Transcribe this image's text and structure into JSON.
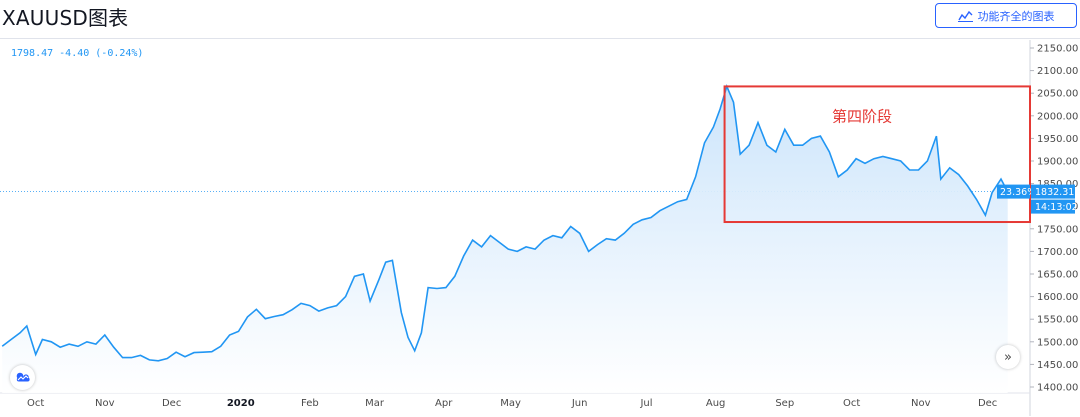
{
  "page": {
    "title": "XAUUSD图表",
    "full_chart_button": "功能齐全的图表",
    "legend": "1798.47 -4.40 (-0.24%)",
    "phase_label": "第四阶段",
    "tag_percent": "23.36%",
    "tag_price": "1832.31",
    "tag_time": "14:13:02",
    "scroll_button": "»"
  },
  "colors": {
    "line": "#2196f3",
    "fill_top": "#c9e3fb",
    "fill_bottom": "#ffffff",
    "box": "#e53935",
    "tag": "#2196f3"
  },
  "chart_data": {
    "type": "area",
    "title": "XAUUSD图表",
    "y_axis_side": "right",
    "ylim": [
      1400,
      2150
    ],
    "y_ticks": [
      1400,
      1450,
      1500,
      1550,
      1600,
      1650,
      1700,
      1750,
      1800,
      1850,
      1900,
      1950,
      2000,
      2050,
      2100,
      2150
    ],
    "y_tick_labels": [
      "1400.00",
      "1450.00",
      "1500.00",
      "1550.00",
      "1600.00",
      "1650.00",
      "1700.00",
      "1750.00",
      "1800.00",
      "1850.00",
      "1900.00",
      "1950.00",
      "2000.00",
      "2050.00",
      "2100.00",
      "2150.00"
    ],
    "x_range": [
      "2019-09-15",
      "2020-12-20"
    ],
    "x_ticks": [
      {
        "label": "Oct",
        "date": "2019-10-01",
        "bold": false
      },
      {
        "label": "Nov",
        "date": "2019-11-01",
        "bold": false
      },
      {
        "label": "Dec",
        "date": "2019-12-01",
        "bold": false
      },
      {
        "label": "2020",
        "date": "2020-01-01",
        "bold": true
      },
      {
        "label": "Feb",
        "date": "2020-02-01",
        "bold": false
      },
      {
        "label": "Mar",
        "date": "2020-03-01",
        "bold": false
      },
      {
        "label": "Apr",
        "date": "2020-04-01",
        "bold": false
      },
      {
        "label": "May",
        "date": "2020-05-01",
        "bold": false
      },
      {
        "label": "Jun",
        "date": "2020-06-01",
        "bold": false
      },
      {
        "label": "Jul",
        "date": "2020-07-01",
        "bold": false
      },
      {
        "label": "Aug",
        "date": "2020-08-01",
        "bold": false
      },
      {
        "label": "Sep",
        "date": "2020-09-01",
        "bold": false
      },
      {
        "label": "Oct",
        "date": "2020-10-01",
        "bold": false
      },
      {
        "label": "Nov",
        "date": "2020-11-01",
        "bold": false
      },
      {
        "label": "Dec",
        "date": "2020-12-01",
        "bold": false
      }
    ],
    "last_value": 1832.31,
    "series": [
      {
        "x": [
          "2019-09-16",
          "2019-09-20",
          "2019-09-24",
          "2019-09-27",
          "2019-10-01",
          "2019-10-04",
          "2019-10-08",
          "2019-10-12",
          "2019-10-16",
          "2019-10-20",
          "2019-10-24",
          "2019-10-28",
          "2019-11-01",
          "2019-11-05",
          "2019-11-09",
          "2019-11-13",
          "2019-11-17",
          "2019-11-21",
          "2019-11-25",
          "2019-11-29",
          "2019-12-03",
          "2019-12-07",
          "2019-12-11",
          "2019-12-15",
          "2019-12-19",
          "2019-12-23",
          "2019-12-27",
          "2019-12-31",
          "2020-01-04",
          "2020-01-08",
          "2020-01-12",
          "2020-01-16",
          "2020-01-20",
          "2020-01-24",
          "2020-01-28",
          "2020-02-01",
          "2020-02-05",
          "2020-02-09",
          "2020-02-13",
          "2020-02-17",
          "2020-02-21",
          "2020-02-25",
          "2020-02-28",
          "2020-03-03",
          "2020-03-06",
          "2020-03-09",
          "2020-03-13",
          "2020-03-16",
          "2020-03-19",
          "2020-03-22",
          "2020-03-25",
          "2020-03-29",
          "2020-04-02",
          "2020-04-06",
          "2020-04-10",
          "2020-04-14",
          "2020-04-18",
          "2020-04-22",
          "2020-04-26",
          "2020-04-30",
          "2020-05-04",
          "2020-05-08",
          "2020-05-12",
          "2020-05-16",
          "2020-05-20",
          "2020-05-24",
          "2020-05-28",
          "2020-06-01",
          "2020-06-05",
          "2020-06-09",
          "2020-06-13",
          "2020-06-17",
          "2020-06-21",
          "2020-06-25",
          "2020-06-29",
          "2020-07-03",
          "2020-07-07",
          "2020-07-11",
          "2020-07-15",
          "2020-07-19",
          "2020-07-23",
          "2020-07-27",
          "2020-07-31",
          "2020-08-03",
          "2020-08-06",
          "2020-08-09",
          "2020-08-12",
          "2020-08-16",
          "2020-08-20",
          "2020-08-24",
          "2020-08-28",
          "2020-09-01",
          "2020-09-05",
          "2020-09-09",
          "2020-09-13",
          "2020-09-17",
          "2020-09-21",
          "2020-09-25",
          "2020-09-29",
          "2020-10-03",
          "2020-10-07",
          "2020-10-11",
          "2020-10-15",
          "2020-10-19",
          "2020-10-23",
          "2020-10-27",
          "2020-10-31",
          "2020-11-04",
          "2020-11-08",
          "2020-11-10",
          "2020-11-14",
          "2020-11-18",
          "2020-11-22",
          "2020-11-26",
          "2020-11-30",
          "2020-12-03",
          "2020-12-07",
          "2020-12-10"
        ],
        "values": [
          1490,
          1505,
          1520,
          1535,
          1472,
          1505,
          1500,
          1488,
          1495,
          1490,
          1500,
          1495,
          1515,
          1488,
          1465,
          1465,
          1470,
          1460,
          1458,
          1463,
          1477,
          1467,
          1476,
          1477,
          1478,
          1490,
          1515,
          1523,
          1555,
          1572,
          1551,
          1556,
          1560,
          1571,
          1585,
          1580,
          1568,
          1575,
          1580,
          1600,
          1645,
          1650,
          1590,
          1638,
          1676,
          1680,
          1565,
          1510,
          1480,
          1520,
          1620,
          1618,
          1620,
          1645,
          1690,
          1725,
          1710,
          1735,
          1720,
          1705,
          1700,
          1710,
          1705,
          1725,
          1735,
          1730,
          1755,
          1740,
          1700,
          1715,
          1728,
          1725,
          1740,
          1760,
          1770,
          1775,
          1790,
          1800,
          1810,
          1815,
          1865,
          1940,
          1975,
          2015,
          2065,
          2030,
          1915,
          1935,
          1985,
          1935,
          1920,
          1970,
          1935,
          1935,
          1950,
          1955,
          1920,
          1865,
          1880,
          1905,
          1895,
          1905,
          1910,
          1905,
          1900,
          1880,
          1880,
          1900,
          1955,
          1860,
          1885,
          1870,
          1845,
          1815,
          1780,
          1830,
          1860,
          1832
        ]
      }
    ],
    "annotations": [
      {
        "type": "box",
        "label": "第四阶段",
        "x_start": "2020-08-05",
        "x_end": "2020-12-20",
        "y_low": 1765,
        "y_high": 2065
      }
    ]
  }
}
